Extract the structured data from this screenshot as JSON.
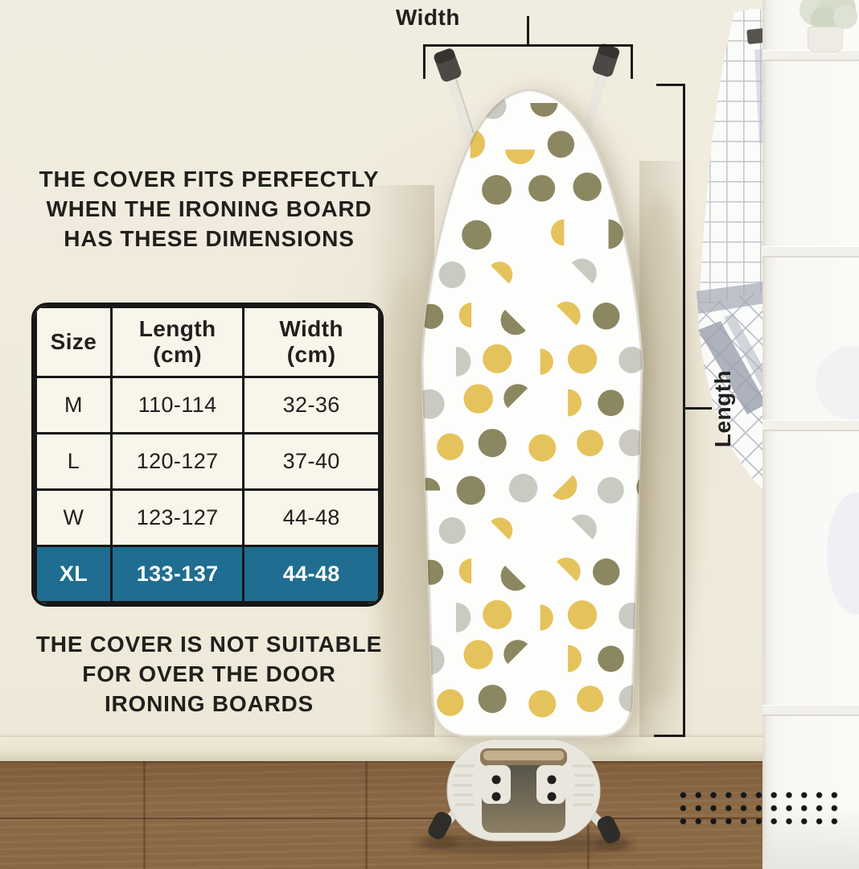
{
  "headline": {
    "lines": [
      "THE COVER FITS PERFECTLY",
      "WHEN THE IRONING BOARD",
      "HAS THESE DIMENSIONS"
    ]
  },
  "footnote": {
    "lines": [
      "THE COVER IS NOT SUITABLE",
      "FOR OVER THE DOOR",
      "IRONING BOARDS"
    ]
  },
  "size_table": {
    "header": [
      {
        "line1": "Size",
        "line2": ""
      },
      {
        "line1": "Length",
        "line2": "(cm)"
      },
      {
        "line1": "Width",
        "line2": "(cm)"
      }
    ],
    "rows": [
      {
        "size": "M",
        "length": "110-114",
        "width": "32-36",
        "highlight": false
      },
      {
        "size": "L",
        "length": "120-127",
        "width": "37-40",
        "highlight": false
      },
      {
        "size": "W",
        "length": "123-127",
        "width": "44-48",
        "highlight": false
      },
      {
        "size": "XL",
        "length": "133-137",
        "width": "44-48",
        "highlight": true
      }
    ],
    "highlight_color": "#1f6d90"
  },
  "annotations": {
    "width_label": "Width",
    "length_label": "Length"
  },
  "board_pattern": {
    "cover_color": "#fdfdfb",
    "dot_colors": [
      "#cbcac2",
      "#e5c35c",
      "#8b8760"
    ]
  }
}
